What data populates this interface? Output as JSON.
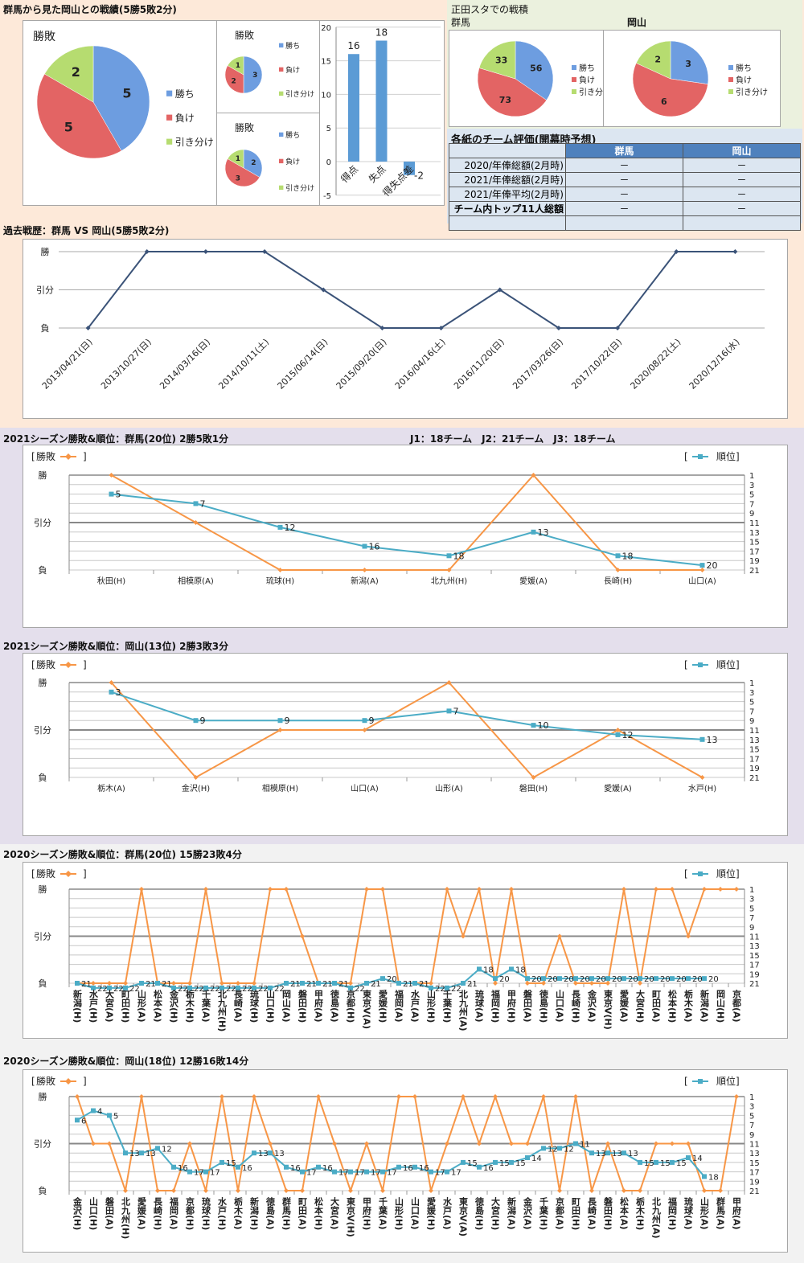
{
  "colors": {
    "win": "#6d9de0",
    "loss": "#e36464",
    "draw": "#b6dc70",
    "result_line": "#f79646",
    "rank_line": "#4bacc6",
    "history_line": "#3b5378"
  },
  "sections": {
    "head2head_title": "群馬から見た岡山との戦績(5勝5敗2分)",
    "shoda_title": "正田スタでの戦積",
    "shoda_gunma": "群馬",
    "shoda_okayama": "岡山",
    "eval_title": "各紙のチーム評価(開幕時予想)",
    "history_title": "過去戦歴：群馬 VS 岡山(5勝5敗2分)",
    "s2021_gunma_title": "2021シーズン勝敗&順位：群馬(20位) 2勝5敗1分",
    "league_info": "J1：18チーム　J2：21チーム　J3：18チーム",
    "s2021_okayama_title": "2021シーズン勝敗&順位：岡山(13位) 2勝3敗3分",
    "s2020_gunma_title": "2020シーズン勝敗&順位：群馬(20位) 15勝23敗4分",
    "s2020_okayama_title": "2020シーズン勝敗&順位：岡山(18位) 12勝16敗14分"
  },
  "eval_table": {
    "headers": [
      "",
      "群馬",
      "岡山"
    ],
    "rows": [
      [
        "2020/年俸総額(2月時)",
        "－",
        "－"
      ],
      [
        "2021/年俸総額(2月時)",
        "－",
        "－"
      ],
      [
        "2021/年俸平均(2月時)",
        "－",
        "－"
      ],
      [
        "チーム内トップ11人総額",
        "－",
        "－"
      ],
      [
        "",
        "",
        ""
      ]
    ]
  },
  "chart_data": [
    {
      "type": "pie",
      "title": "勝敗",
      "categories": [
        "勝ち",
        "負け",
        "引き分け"
      ],
      "values": [
        5,
        5,
        2
      ]
    },
    {
      "type": "pie",
      "title": "勝敗",
      "categories": [
        "勝ち",
        "負け",
        "引き分け"
      ],
      "values": [
        3,
        2,
        1
      ]
    },
    {
      "type": "pie",
      "title": "勝敗",
      "categories": [
        "勝ち",
        "負け",
        "引き分け"
      ],
      "values": [
        2,
        3,
        1
      ]
    },
    {
      "type": "bar",
      "categories": [
        "得点",
        "失点",
        "得失点差"
      ],
      "values": [
        16,
        18,
        -2
      ],
      "ylim": [
        -5,
        20
      ],
      "yticks": [
        -5,
        0,
        5,
        10,
        15,
        20
      ],
      "grid": true
    },
    {
      "type": "pie",
      "categories": [
        "勝ち",
        "負け",
        "引き分け"
      ],
      "values": [
        56,
        73,
        33
      ]
    },
    {
      "type": "pie",
      "categories": [
        "勝ち",
        "負け",
        "引き分け"
      ],
      "values": [
        3,
        6,
        2
      ]
    },
    {
      "type": "line",
      "categories": [
        "2013/04/21(日)",
        "2013/10/27(日)",
        "2014/03/16(日)",
        "2014/10/11(土)",
        "2015/06/14(日)",
        "2015/09/20(日)",
        "2016/04/16(土)",
        "2016/11/20(日)",
        "2017/03/26(日)",
        "2017/10/22(日)",
        "2020/08/22(土)",
        "2020/12/16(水)"
      ],
      "y_categories": [
        "勝",
        "引分",
        "負"
      ],
      "values": [
        "負",
        "勝",
        "勝",
        "勝",
        "引分",
        "負",
        "負",
        "引分",
        "負",
        "負",
        "勝",
        "勝"
      ],
      "grid": true
    },
    {
      "type": "line",
      "legend": [
        "勝敗",
        "順位"
      ],
      "y_categories": [
        "勝",
        "引分",
        "負"
      ],
      "rank_ticks": [
        1,
        3,
        5,
        7,
        9,
        11,
        13,
        15,
        17,
        19,
        21
      ],
      "categories": [
        "秋田(H)",
        "相模原(A)",
        "琉球(H)",
        "新潟(A)",
        "北九州(H)",
        "愛媛(A)",
        "長崎(H)",
        "山口(A)"
      ],
      "results": [
        "勝",
        "引分",
        "負",
        "負",
        "負",
        "勝",
        "負",
        "負"
      ],
      "ranks": [
        5,
        7,
        12,
        16,
        18,
        13,
        18,
        20
      ]
    },
    {
      "type": "line",
      "legend": [
        "勝敗",
        "順位"
      ],
      "y_categories": [
        "勝",
        "引分",
        "負"
      ],
      "rank_ticks": [
        1,
        3,
        5,
        7,
        9,
        11,
        13,
        15,
        17,
        19,
        21
      ],
      "categories": [
        "栃木(A)",
        "金沢(H)",
        "相模原(H)",
        "山口(A)",
        "山形(A)",
        "磐田(H)",
        "愛媛(A)",
        "水戸(H)"
      ],
      "results": [
        "勝",
        "負",
        "引分",
        "引分",
        "勝",
        "負",
        "引分",
        "負"
      ],
      "ranks": [
        3,
        9,
        9,
        9,
        7,
        10,
        12,
        13
      ]
    },
    {
      "type": "line",
      "legend": [
        "勝敗",
        "順位"
      ],
      "y_categories": [
        "勝",
        "引分",
        "負"
      ],
      "rank_ticks": [
        1,
        3,
        5,
        7,
        9,
        11,
        13,
        15,
        17,
        19,
        21
      ],
      "categories": [
        "新潟(H)",
        "水戸(H)",
        "大宮(A)",
        "町田(H)",
        "山形(A)",
        "松本(A)",
        "金沢(H)",
        "栃木(H)",
        "千葉(A)",
        "北九州(H)",
        "長崎(A)",
        "琉球(H)",
        "山口(H)",
        "岡山(A)",
        "磐田(H)",
        "甲府(A)",
        "徳島(A)",
        "京都(H)",
        "東京V(A)",
        "愛媛(H)",
        "福岡(A)",
        "水戸(A)",
        "山形(H)",
        "千葉(H)",
        "北九州(A)",
        "琉球(A)",
        "福岡(H)",
        "甲府(H)",
        "磐田(A)",
        "徳島(H)",
        "山口(A)",
        "長崎(H)",
        "金沢(A)",
        "東京V(H)",
        "愛媛(A)",
        "大宮(H)",
        "町田(A)",
        "松本(H)",
        "栃木(A)",
        "新潟(A)",
        "岡山(H)",
        "京都(A)"
      ],
      "results": [
        "負",
        "負",
        "負",
        "負",
        "勝",
        "負",
        "負",
        "負",
        "勝",
        "負",
        "負",
        "負",
        "勝",
        "勝",
        "引分",
        "負",
        "負",
        "負",
        "勝",
        "勝",
        "負",
        "負",
        "負",
        "勝",
        "引分",
        "勝",
        "負",
        "勝",
        "負",
        "負",
        "引分",
        "負",
        "負",
        "負",
        "勝",
        "負",
        "勝",
        "勝",
        "引分",
        "勝",
        "勝",
        "勝"
      ],
      "ranks": [
        21,
        22,
        22,
        22,
        21,
        21,
        22,
        22,
        22,
        22,
        22,
        22,
        22,
        21,
        21,
        21,
        21,
        22,
        21,
        20,
        21,
        21,
        22,
        22,
        21,
        18,
        20,
        18,
        20,
        20,
        20,
        20,
        20,
        20,
        20,
        20,
        20,
        20,
        20,
        20,
        null,
        null
      ]
    },
    {
      "type": "line",
      "legend": [
        "勝敗",
        "順位"
      ],
      "y_categories": [
        "勝",
        "引分",
        "負"
      ],
      "rank_ticks": [
        1,
        3,
        5,
        7,
        9,
        11,
        13,
        15,
        17,
        19,
        21
      ],
      "categories": [
        "金沢(H)",
        "山口(H)",
        "磐田(A)",
        "北九州(H)",
        "愛媛(A)",
        "長崎(H)",
        "福岡(A)",
        "京都(H)",
        "琉球(H)",
        "水戸(H)",
        "栃木(A)",
        "新潟(H)",
        "徳島(A)",
        "群馬(H)",
        "町田(A)",
        "松本(H)",
        "大宮(A)",
        "東京V(H)",
        "甲府(H)",
        "千葉(A)",
        "山形(H)",
        "山口(A)",
        "愛媛(H)",
        "水戸(A)",
        "東京V(A)",
        "徳島(H)",
        "大宮(H)",
        "新潟(A)",
        "金沢(A)",
        "千葉(H)",
        "京都(A)",
        "町田(H)",
        "長崎(A)",
        "磐田(H)",
        "松本(A)",
        "栃木(H)",
        "北九州(A)",
        "福岡(H)",
        "琉球(A)",
        "山形(A)",
        "群馬(A)",
        "甲府(A)"
      ],
      "results": [
        "勝",
        "引分",
        "引分",
        "負",
        "勝",
        "負",
        "負",
        "引分",
        "負",
        "勝",
        "負",
        "勝",
        "引分",
        "負",
        "負",
        "勝",
        "引分",
        "負",
        "引分",
        "負",
        "勝",
        "勝",
        "負",
        "引分",
        "勝",
        "引分",
        "勝",
        "引分",
        "引分",
        "勝",
        "負",
        "勝",
        "負",
        "引分",
        "負",
        "負",
        "引分",
        "引分",
        "引分",
        "負",
        "負",
        "勝"
      ],
      "ranks": [
        6,
        4,
        5,
        13,
        13,
        12,
        16,
        17,
        17,
        15,
        16,
        13,
        13,
        16,
        17,
        16,
        17,
        17,
        17,
        17,
        16,
        16,
        17,
        17,
        15,
        16,
        15,
        15,
        14,
        12,
        12,
        11,
        13,
        13,
        13,
        15,
        15,
        15,
        14,
        18,
        null,
        null
      ]
    }
  ]
}
